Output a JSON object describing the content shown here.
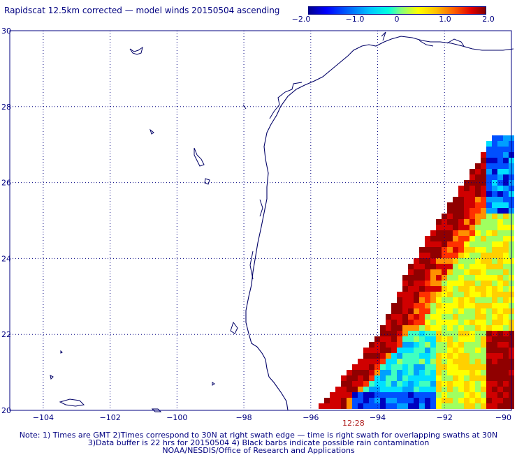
{
  "title": "Rapidscat 12.5km corrected — model winds 20150504 ascending",
  "colorbar": {
    "ticks": [
      "−2.0",
      "−1.0",
      "0",
      "1.0",
      "2.0"
    ]
  },
  "time_label": "12:28",
  "notes": {
    "line1": "Note: 1) Times are GMT 2)Times correspond to 30N at right swath edge — time is right swath for overlapping swaths at 30N",
    "line2": "3)Data buffer is 22 hrs for 20150504 4) Black barbs indicate possible rain contamination",
    "line3": "NOAA/NESDIS/Office of Research and Applications"
  },
  "colors": {
    "frame": "#000080",
    "coast": "#000066",
    "grid": "#000080"
  },
  "chart_data": {
    "type": "heatmap",
    "title": "Rapidscat 12.5km corrected — model winds 20150504 ascending",
    "x_ticks": [
      "−104",
      "−102",
      "−100",
      "−98",
      "−96",
      "−94",
      "−92",
      "−90"
    ],
    "y_ticks": [
      "30",
      "28",
      "26",
      "24",
      "22",
      "20"
    ],
    "xlim": [
      -105,
      -90
    ],
    "ylim": [
      20,
      30
    ],
    "grid": true,
    "colorbar_range": [
      -2.0,
      2.0
    ],
    "swath_edge": [
      [
        -95.8,
        20.0
      ],
      [
        -94.0,
        22.0
      ],
      [
        -92.9,
        24.0
      ],
      [
        -91.4,
        26.0
      ],
      [
        -90.2,
        27.7
      ],
      [
        -90.0,
        27.9
      ]
    ]
  }
}
